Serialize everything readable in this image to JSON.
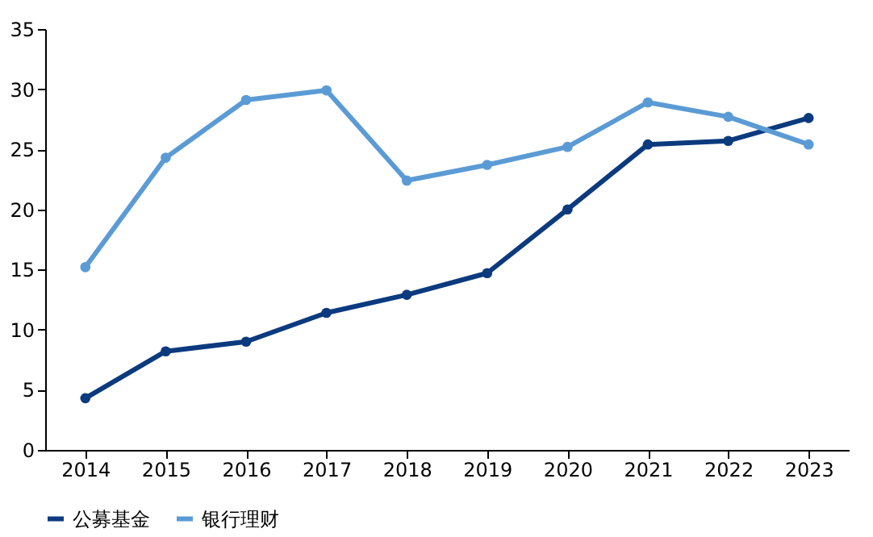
{
  "chart_data": {
    "type": "line",
    "categories": [
      "2014",
      "2015",
      "2016",
      "2017",
      "2018",
      "2019",
      "2020",
      "2021",
      "2022",
      "2023"
    ],
    "series": [
      {
        "name": "公募基金",
        "color": "#0b3a7e",
        "values": [
          4.3,
          8.2,
          9.0,
          11.4,
          12.9,
          14.7,
          20.0,
          25.4,
          25.7,
          27.6
        ]
      },
      {
        "name": "银行理财",
        "color": "#5b9bd5",
        "values": [
          15.2,
          24.3,
          29.1,
          29.9,
          22.4,
          23.7,
          25.2,
          28.9,
          27.7,
          25.4
        ]
      }
    ],
    "ylim": [
      0,
      35
    ],
    "yticks": [
      0,
      5,
      10,
      15,
      20,
      25,
      30,
      35
    ],
    "grid": false,
    "legend": "bottom",
    "marker": "circle",
    "line_style": "solid"
  }
}
